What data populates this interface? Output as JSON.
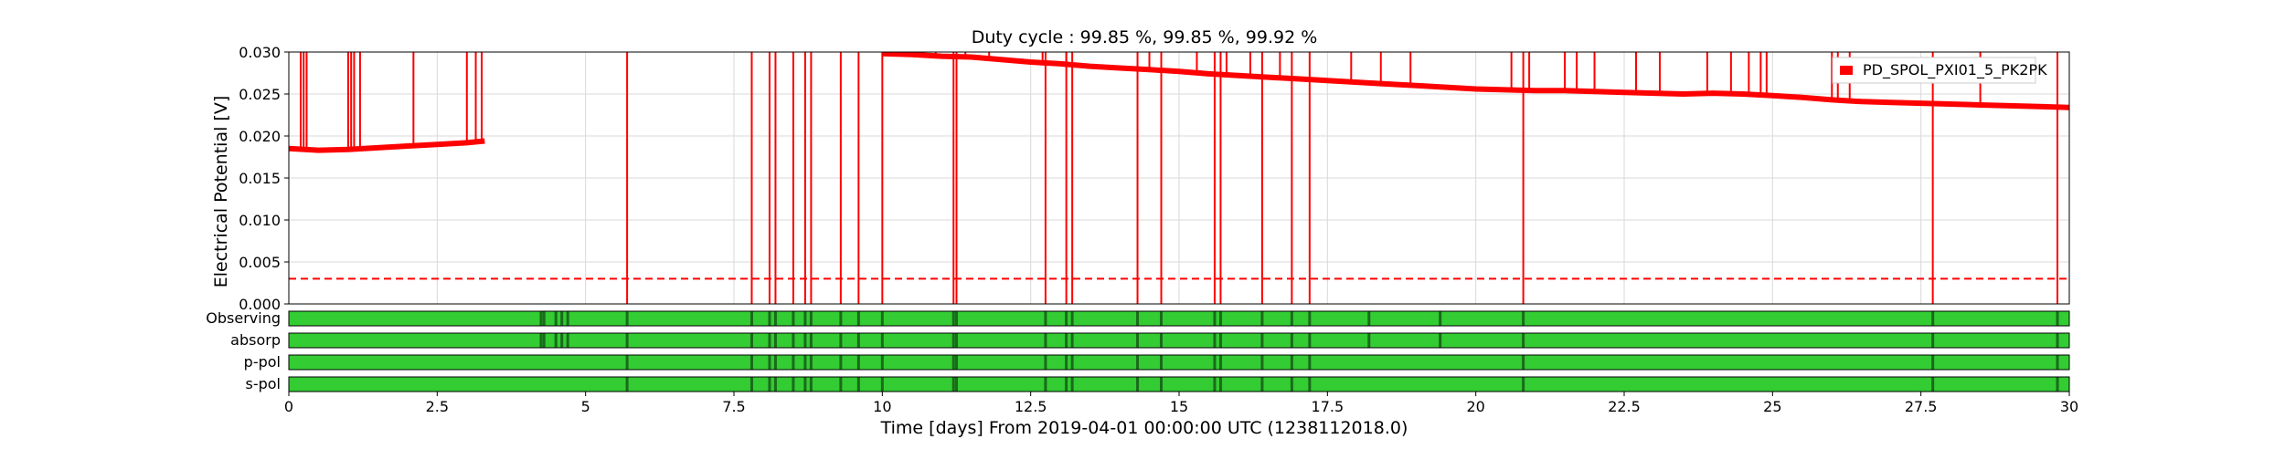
{
  "chart_data": {
    "type": "line",
    "title": "Duty cycle : 99.85 %, 99.85 %, 99.92 %",
    "xlabel": "Time [days] From 2019-04-01 00:00:00 UTC (1238112018.0)",
    "ylabel": "Electrical Potential [V]",
    "xlim": [
      0,
      30
    ],
    "ylim": [
      0,
      0.03
    ],
    "xticks": [
      0,
      2.5,
      5,
      7.5,
      10,
      12.5,
      15,
      17.5,
      20,
      22.5,
      25,
      27.5,
      30
    ],
    "xtick_labels": [
      "0",
      "2.5",
      "5",
      "7.5",
      "10",
      "12.5",
      "15",
      "17.5",
      "20",
      "22.5",
      "25",
      "27.5",
      "30"
    ],
    "yticks": [
      0,
      0.005,
      0.01,
      0.015,
      0.02,
      0.025,
      0.03
    ],
    "ytick_labels": [
      "0.000",
      "0.005",
      "0.010",
      "0.015",
      "0.020",
      "0.025",
      "0.030"
    ],
    "grid": true,
    "legend": {
      "placement": "top-right",
      "entries": [
        "PD_SPOL_PXI01_5_PK2PK"
      ]
    },
    "colors": {
      "series": "#ff0000",
      "threshold": "#ff0000",
      "segment_on": "#33cc33",
      "segment_gap": "#1a6b1a"
    },
    "series": [
      {
        "name": "PD_SPOL_PXI01_5_PK2PK",
        "x": [
          0,
          0.5,
          1.0,
          1.5,
          2.0,
          2.5,
          3.0,
          3.3,
          10.0,
          10.5,
          11.0,
          11.5,
          12.0,
          12.5,
          13.0,
          13.5,
          14.0,
          14.5,
          15.0,
          15.5,
          16.0,
          16.5,
          17.0,
          17.5,
          18.0,
          18.5,
          19.0,
          19.5,
          20.0,
          20.5,
          21.0,
          21.5,
          22.0,
          22.5,
          23.0,
          23.5,
          24.0,
          24.5,
          25.0,
          25.5,
          26.0,
          26.5,
          27.0,
          27.5,
          28.0,
          28.5,
          29.0,
          29.5,
          30.0
        ],
        "y": [
          0.0185,
          0.0183,
          0.0184,
          0.0186,
          0.0188,
          0.019,
          0.0192,
          0.0194,
          0.0298,
          0.0297,
          0.0295,
          0.0294,
          0.0291,
          0.0288,
          0.0286,
          0.0283,
          0.0281,
          0.0279,
          0.0277,
          0.0274,
          0.0272,
          0.027,
          0.0268,
          0.0266,
          0.0264,
          0.0262,
          0.026,
          0.0258,
          0.0256,
          0.0255,
          0.0254,
          0.0254,
          0.0253,
          0.0252,
          0.0251,
          0.025,
          0.0251,
          0.025,
          0.0248,
          0.0246,
          0.0243,
          0.0241,
          0.024,
          0.0239,
          0.0238,
          0.0237,
          0.0236,
          0.0235,
          0.0234
        ]
      }
    ],
    "spikes_up": [
      0.2,
      0.25,
      0.3,
      1.0,
      1.05,
      1.1,
      1.2,
      2.1,
      3.0,
      3.15,
      3.25,
      10.2,
      10.6,
      10.9,
      11.4,
      11.8,
      12.7,
      13.1,
      14.5,
      15.3,
      15.8,
      16.2,
      16.7,
      17.9,
      18.4,
      18.9,
      20.6,
      20.9,
      21.5,
      21.7,
      22.0,
      22.7,
      23.1,
      23.9,
      24.3,
      24.6,
      24.8,
      24.9,
      26.0,
      26.1,
      26.3,
      28.5
    ],
    "dropouts": [
      5.7,
      7.8,
      8.1,
      8.2,
      8.5,
      8.7,
      8.8,
      9.3,
      9.6,
      10.0,
      11.2,
      11.25,
      12.75,
      13.1,
      13.2,
      14.3,
      14.7,
      15.6,
      15.7,
      16.4,
      16.9,
      17.2,
      20.8,
      27.7,
      29.8
    ],
    "threshold": {
      "value": 0.003,
      "style": "dashed"
    },
    "segment_rows": [
      {
        "label": "Observing",
        "gaps": [
          4.25,
          4.3,
          4.5,
          4.6,
          4.7,
          5.7,
          7.8,
          8.1,
          8.2,
          8.5,
          8.7,
          8.8,
          9.3,
          9.6,
          10.0,
          11.2,
          11.25,
          12.75,
          13.1,
          13.2,
          14.3,
          14.7,
          15.6,
          15.7,
          16.4,
          16.9,
          17.2,
          18.2,
          19.4,
          20.8,
          27.7,
          29.8
        ]
      },
      {
        "label": "absorp",
        "gaps": [
          4.25,
          4.3,
          4.5,
          4.6,
          4.7,
          5.7,
          7.8,
          8.1,
          8.2,
          8.5,
          8.7,
          8.8,
          9.3,
          9.6,
          10.0,
          11.2,
          11.25,
          12.75,
          13.1,
          13.2,
          14.3,
          14.7,
          15.6,
          15.7,
          16.4,
          16.9,
          17.2,
          18.2,
          19.4,
          20.8,
          27.7,
          29.8
        ]
      },
      {
        "label": "p-pol",
        "gaps": [
          5.7,
          7.8,
          8.1,
          8.2,
          8.5,
          8.7,
          8.8,
          9.3,
          9.6,
          10.0,
          11.2,
          11.25,
          12.75,
          13.1,
          13.2,
          14.3,
          14.7,
          15.6,
          15.7,
          16.4,
          16.9,
          17.2,
          20.8,
          27.7,
          29.8
        ]
      },
      {
        "label": "s-pol",
        "gaps": [
          5.7,
          7.8,
          8.1,
          8.2,
          8.5,
          8.7,
          8.8,
          9.3,
          9.6,
          10.0,
          11.2,
          11.25,
          12.75,
          13.1,
          13.2,
          14.3,
          14.7,
          15.6,
          15.7,
          16.4,
          16.9,
          17.2,
          20.8,
          27.7,
          29.8
        ]
      }
    ]
  }
}
